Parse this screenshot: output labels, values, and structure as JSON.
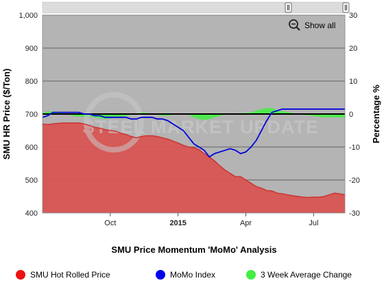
{
  "chart_data": {
    "type": "area",
    "title": "SMU Price Momentum 'MoMo' Analysis",
    "xlabel": "",
    "ylabel": "SMU HR Price ($/Ton)",
    "y2label": "Percentage %",
    "ylim": [
      400,
      1000
    ],
    "y2lim": [
      -30,
      30
    ],
    "y_ticks": [
      "400",
      "500",
      "600",
      "700",
      "800",
      "900",
      "1,000"
    ],
    "y2_ticks": [
      "-30",
      "-20",
      "-10",
      "0",
      "10",
      "20",
      "30"
    ],
    "x_ticks": [
      {
        "label": "Oct",
        "x": 13,
        "bold": false
      },
      {
        "label": "2015",
        "x": 26,
        "bold": true
      },
      {
        "label": "Apr",
        "x": 39,
        "bold": false
      },
      {
        "label": "Jul",
        "x": 52,
        "bold": false
      }
    ],
    "x_range": [
      0,
      58
    ],
    "grid": true,
    "legend_position": "bottom",
    "show_all_label": "Show all",
    "watermark": "STEEL MARKET UPDATE",
    "colors": {
      "plot_background": "#b4b4b4",
      "hot_rolled_fill": "#d9534f",
      "hot_rolled_line": "#cc3333",
      "momo_line": "#0000dd",
      "three_week_fill": "#44ee44",
      "zero_line": "#000000"
    },
    "series": [
      {
        "name": "SMU Hot Rolled Price",
        "axis": "left",
        "legend_color": "#ee1111",
        "x": [
          0,
          1,
          2,
          3,
          4,
          5,
          6,
          7,
          8,
          9,
          10,
          11,
          12,
          13,
          14,
          15,
          16,
          17,
          18,
          19,
          20,
          21,
          22,
          23,
          24,
          25,
          26,
          27,
          28,
          29,
          30,
          31,
          32,
          33,
          34,
          35,
          36,
          37,
          38,
          39,
          40,
          41,
          42,
          43,
          44,
          45,
          46,
          47,
          48,
          49,
          50,
          51,
          52,
          53,
          54,
          55,
          56,
          57,
          58
        ],
        "values": [
          670,
          668,
          670,
          672,
          673,
          673,
          673,
          673,
          670,
          665,
          660,
          657,
          653,
          650,
          648,
          642,
          638,
          632,
          628,
          632,
          634,
          634,
          632,
          628,
          624,
          618,
          612,
          605,
          600,
          598,
          592,
          580,
          570,
          558,
          543,
          530,
          520,
          510,
          510,
          500,
          490,
          480,
          475,
          468,
          467,
          460,
          458,
          455,
          452,
          450,
          448,
          447,
          448,
          448,
          450,
          455,
          460,
          458,
          455
        ]
      },
      {
        "name": "MoMo Index",
        "axis": "right",
        "legend_color": "#0000ee",
        "x": [
          0,
          1,
          2,
          3,
          4,
          5,
          6,
          7,
          8,
          9,
          10,
          11,
          12,
          13,
          14,
          15,
          16,
          17,
          18,
          19,
          20,
          21,
          22,
          23,
          24,
          25,
          26,
          27,
          28,
          29,
          30,
          31,
          32,
          33,
          34,
          35,
          36,
          37,
          38,
          39,
          40,
          41,
          42,
          43,
          44,
          45,
          46,
          47,
          48,
          49,
          50,
          51,
          52,
          53,
          54,
          55,
          56,
          57,
          58
        ],
        "values": [
          -1,
          -0.5,
          0.5,
          0.5,
          0.5,
          0.5,
          0.5,
          0.5,
          0,
          0,
          -0.5,
          -0.5,
          -1,
          -1,
          -1,
          -1,
          -1,
          -1.5,
          -1.5,
          -1,
          -1,
          -1,
          -1.5,
          -1.5,
          -2,
          -3,
          -4,
          -5,
          -7,
          -9,
          -10,
          -11,
          -13,
          -12,
          -11.5,
          -11,
          -10.5,
          -11,
          -12,
          -11.5,
          -10,
          -8,
          -5,
          -2,
          0.5,
          1,
          1.5,
          1.5,
          1.5,
          1.5,
          1.5,
          1.5,
          1.5,
          1.5,
          1.5,
          1.5,
          1.5,
          1.5,
          1.5
        ]
      },
      {
        "name": "3 Week Average Change",
        "axis": "right",
        "legend_color": "#44ee44",
        "x": [
          0,
          1,
          2,
          3,
          4,
          5,
          6,
          7,
          8,
          9,
          10,
          11,
          12,
          13,
          14,
          15,
          16,
          17,
          18,
          19,
          20,
          21,
          22,
          23,
          24,
          25,
          26,
          27,
          28,
          29,
          30,
          31,
          32,
          33,
          34,
          35,
          36,
          37,
          38,
          39,
          40,
          41,
          42,
          43,
          44,
          45,
          46,
          47,
          48,
          49,
          50,
          51,
          52,
          53,
          54,
          55,
          56,
          57,
          58
        ],
        "values": [
          0.3,
          0.8,
          0.8,
          0.5,
          0.2,
          -0.2,
          -0.6,
          -0.8,
          -0.8,
          -0.8,
          -1,
          -1.3,
          -1.5,
          -1.3,
          -1,
          -0.8,
          -0.6,
          -0.2,
          0.2,
          0.5,
          0.3,
          0,
          -0.2,
          -0.5,
          -0.5,
          -0.2,
          0,
          0,
          -0.2,
          -1,
          -1.5,
          -1.8,
          -1.5,
          -1,
          -0.6,
          -0.2,
          0,
          0.2,
          0.3,
          0.3,
          0.5,
          1,
          1.5,
          1.8,
          1.8,
          1.2,
          0.8,
          0.6,
          0.3,
          0,
          -0.2,
          -0.4,
          -0.6,
          -0.8,
          -1,
          -1,
          -1,
          -1,
          -1.2
        ]
      }
    ]
  }
}
